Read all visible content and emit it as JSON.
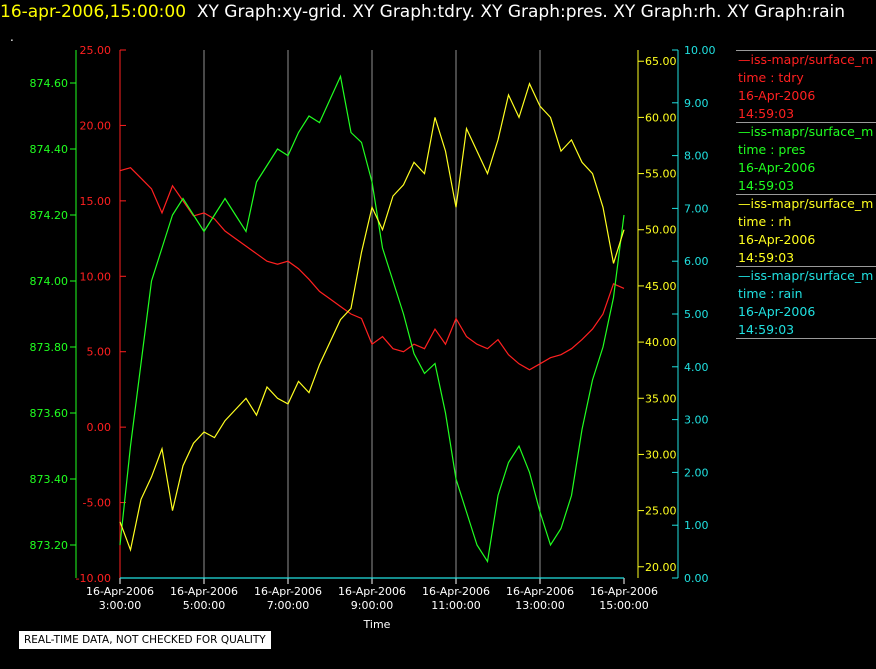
{
  "header": {
    "timestamp": "16-apr-2006,15:00:00",
    "graphs": "XY Graph:xy-grid.  XY Graph:tdry.  XY Graph:pres.  XY Graph:rh.  XY Graph:rain",
    "dot": "."
  },
  "disclaimer": "REAL-TIME DATA, NOT CHECKED FOR QUALITY",
  "legend": [
    {
      "name": "—iss-mapr/surface_m",
      "var": "time : tdry",
      "date": "16-Apr-2006",
      "time": "14:59:03",
      "color": "#ff2020"
    },
    {
      "name": "—iss-mapr/surface_m",
      "var": "time : pres",
      "date": "16-Apr-2006",
      "time": "14:59:03",
      "color": "#20ff20"
    },
    {
      "name": "—iss-mapr/surface_m",
      "var": "time : rh",
      "date": "16-Apr-2006",
      "time": "14:59:03",
      "color": "#ffff20"
    },
    {
      "name": "—iss-mapr/surface_m",
      "var": "time : rain",
      "date": "16-Apr-2006",
      "time": "14:59:03",
      "color": "#20e0e0"
    }
  ],
  "chart_data": {
    "type": "line",
    "xlabel": "Time",
    "x_ticks": [
      [
        "16-Apr-2006",
        "3:00:00"
      ],
      [
        "16-Apr-2006",
        "5:00:00"
      ],
      [
        "16-Apr-2006",
        "7:00:00"
      ],
      [
        "16-Apr-2006",
        "9:00:00"
      ],
      [
        "16-Apr-2006",
        "11:00:00"
      ],
      [
        "16-Apr-2006",
        "13:00:00"
      ],
      [
        "16-Apr-2006",
        "15:00:00"
      ]
    ],
    "xlim_hours": [
      3,
      15
    ],
    "grid": "vertical",
    "axes": {
      "pres": {
        "color": "#20ff20",
        "ylim": [
          873.1,
          874.7
        ],
        "ticks": [
          "873.20",
          "873.40",
          "873.60",
          "873.80",
          "874.00",
          "874.20",
          "874.40",
          "874.60"
        ],
        "tick_values": [
          873.2,
          873.4,
          873.6,
          873.8,
          874.0,
          874.2,
          874.4,
          874.6
        ]
      },
      "tdry": {
        "color": "#ff2020",
        "ylim": [
          -10,
          25
        ],
        "ticks": [
          "-10.00",
          "-5.00",
          "0.00",
          "5.00",
          "10.00",
          "15.00",
          "20.00",
          "25.00"
        ],
        "tick_values": [
          -10,
          -5,
          0,
          5,
          10,
          15,
          20,
          25
        ]
      },
      "rh": {
        "color": "#ffff20",
        "ylim": [
          19,
          66
        ],
        "ticks": [
          "20.00",
          "25.00",
          "30.00",
          "35.00",
          "40.00",
          "45.00",
          "50.00",
          "55.00",
          "60.00",
          "65.00"
        ],
        "tick_values": [
          20,
          25,
          30,
          35,
          40,
          45,
          50,
          55,
          60,
          65
        ]
      },
      "rain": {
        "color": "#20e0e0",
        "ylim": [
          0,
          10
        ],
        "ticks": [
          "0.00",
          "1.00",
          "2.00",
          "3.00",
          "4.00",
          "5.00",
          "6.00",
          "7.00",
          "8.00",
          "9.00",
          "10.00"
        ],
        "tick_values": [
          0,
          1,
          2,
          3,
          4,
          5,
          6,
          7,
          8,
          9,
          10
        ]
      }
    },
    "series": [
      {
        "name": "tdry",
        "axis": "tdry",
        "color": "#ff2020",
        "x": [
          3.0,
          3.25,
          3.5,
          3.75,
          4.0,
          4.25,
          4.5,
          4.75,
          5.0,
          5.25,
          5.5,
          5.75,
          6.0,
          6.25,
          6.5,
          6.75,
          7.0,
          7.25,
          7.5,
          7.75,
          8.0,
          8.25,
          8.5,
          8.75,
          9.0,
          9.25,
          9.5,
          9.75,
          10.0,
          10.25,
          10.5,
          10.75,
          11.0,
          11.25,
          11.5,
          11.75,
          12.0,
          12.25,
          12.5,
          12.75,
          13.0,
          13.25,
          13.5,
          13.75,
          14.0,
          14.25,
          14.5,
          14.75,
          15.0
        ],
        "y": [
          17.0,
          17.2,
          16.5,
          15.8,
          14.2,
          16.0,
          15.0,
          14.0,
          14.2,
          13.8,
          13.0,
          12.5,
          12.0,
          11.5,
          11.0,
          10.8,
          11.0,
          10.5,
          9.8,
          9.0,
          8.5,
          8.0,
          7.5,
          7.2,
          5.5,
          6.0,
          5.2,
          5.0,
          5.5,
          5.2,
          6.5,
          5.5,
          7.2,
          6.0,
          5.5,
          5.2,
          5.8,
          4.8,
          4.2,
          3.8,
          4.2,
          4.6,
          4.8,
          5.2,
          5.8,
          6.5,
          7.5,
          9.5,
          9.2
        ]
      },
      {
        "name": "pres",
        "axis": "pres",
        "color": "#20ff20",
        "x": [
          3.0,
          3.25,
          3.5,
          3.75,
          4.0,
          4.25,
          4.5,
          4.75,
          5.0,
          5.25,
          5.5,
          5.75,
          6.0,
          6.25,
          6.5,
          6.75,
          7.0,
          7.25,
          7.5,
          7.75,
          8.0,
          8.25,
          8.5,
          8.75,
          9.0,
          9.25,
          9.5,
          9.75,
          10.0,
          10.25,
          10.5,
          10.75,
          11.0,
          11.25,
          11.5,
          11.75,
          12.0,
          12.25,
          12.5,
          12.75,
          13.0,
          13.25,
          13.5,
          13.75,
          14.0,
          14.25,
          14.5,
          14.75,
          15.0
        ],
        "y": [
          873.2,
          873.5,
          873.75,
          874.0,
          874.1,
          874.2,
          874.25,
          874.2,
          874.15,
          874.2,
          874.25,
          874.2,
          874.15,
          874.3,
          874.35,
          874.4,
          874.38,
          874.45,
          874.5,
          874.48,
          874.55,
          874.62,
          874.45,
          874.42,
          874.3,
          874.1,
          874.0,
          873.9,
          873.78,
          873.72,
          873.75,
          873.6,
          873.4,
          873.3,
          873.2,
          873.15,
          873.35,
          873.45,
          873.5,
          873.42,
          873.3,
          873.2,
          873.25,
          873.35,
          873.55,
          873.7,
          873.8,
          873.95,
          874.2
        ]
      },
      {
        "name": "rh",
        "axis": "rh",
        "color": "#ffff20",
        "x": [
          3.0,
          3.25,
          3.5,
          3.75,
          4.0,
          4.25,
          4.5,
          4.75,
          5.0,
          5.25,
          5.5,
          5.75,
          6.0,
          6.25,
          6.5,
          6.75,
          7.0,
          7.25,
          7.5,
          7.75,
          8.0,
          8.25,
          8.5,
          8.75,
          9.0,
          9.25,
          9.5,
          9.75,
          10.0,
          10.25,
          10.5,
          10.75,
          11.0,
          11.25,
          11.5,
          11.75,
          12.0,
          12.25,
          12.5,
          12.75,
          13.0,
          13.25,
          13.5,
          13.75,
          14.0,
          14.25,
          14.5,
          14.75,
          15.0
        ],
        "y": [
          24.0,
          21.5,
          26.0,
          28.0,
          30.5,
          25.0,
          29.0,
          31.0,
          32.0,
          31.5,
          33.0,
          34.0,
          35.0,
          33.5,
          36.0,
          35.0,
          34.5,
          36.5,
          35.5,
          38.0,
          40.0,
          42.0,
          43.0,
          48.0,
          52.0,
          50.0,
          53.0,
          54.0,
          56.0,
          55.0,
          60.0,
          57.0,
          52.0,
          59.0,
          57.0,
          55.0,
          58.0,
          62.0,
          60.0,
          63.0,
          61.0,
          60.0,
          57.0,
          58.0,
          56.0,
          55.0,
          52.0,
          47.0,
          50.0
        ]
      },
      {
        "name": "rain",
        "axis": "rain",
        "color": "#20e0e0",
        "x": [
          3.0,
          15.0
        ],
        "y": [
          0.0,
          0.0
        ]
      }
    ]
  }
}
